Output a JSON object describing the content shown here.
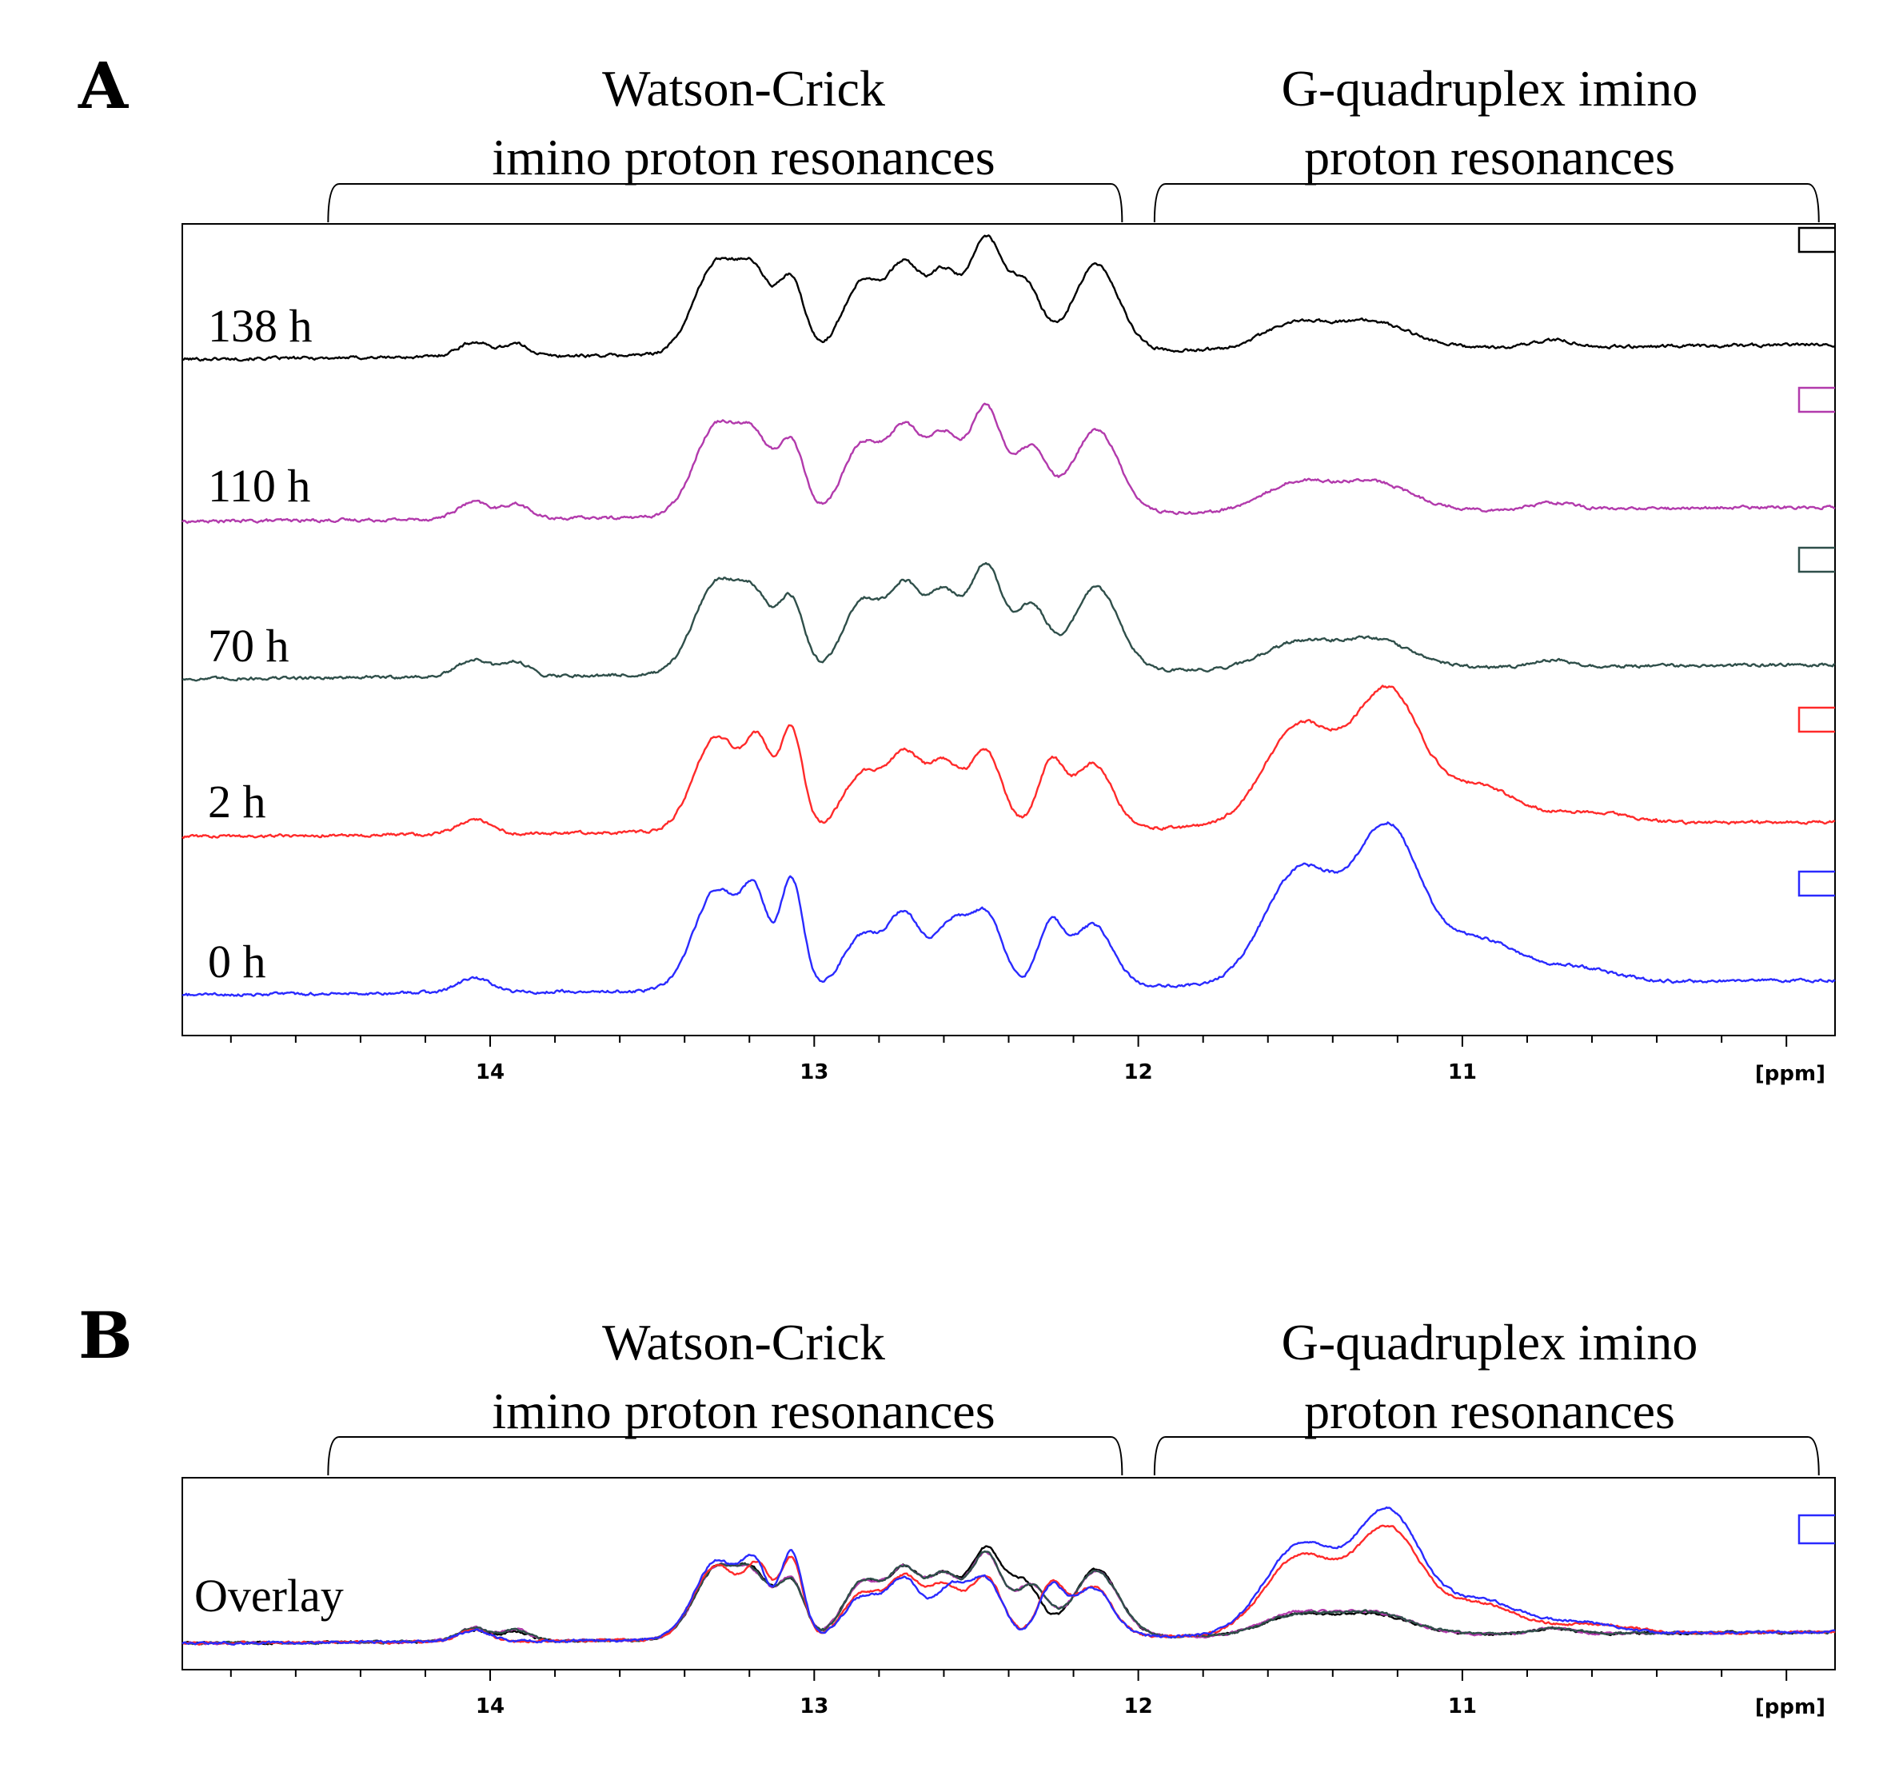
{
  "chart_data": [
    {
      "panel": "A",
      "type": "line",
      "subtype": "stacked NMR spectra",
      "xlabel": "[ppm]",
      "x_reversed": true,
      "xlim": [
        14.95,
        9.85
      ],
      "x_ticks": [
        14,
        13,
        12,
        11
      ],
      "x_tick_labels": [
        "14",
        "13",
        "12",
        "11"
      ],
      "minor_tick_step": 0.2,
      "regions": [
        {
          "label_line1": "Watson-Crick",
          "label_line2": "imino proton resonances",
          "x_from": 14.5,
          "x_to": 12.05
        },
        {
          "label_line1": "G-quadruplex imino",
          "label_line2": "proton resonances",
          "x_from": 11.95,
          "x_to": 9.9
        }
      ],
      "series": [
        {
          "name": "138 h",
          "color": "#000000",
          "offset": 4,
          "peaks": [
            [
              14.05,
              0.06,
              0.05
            ],
            [
              13.92,
              0.05,
              0.04
            ],
            [
              13.3,
              0.38,
              0.07
            ],
            [
              13.18,
              0.28,
              0.05
            ],
            [
              13.07,
              0.3,
              0.04
            ],
            [
              12.85,
              0.3,
              0.06
            ],
            [
              12.72,
              0.34,
              0.05
            ],
            [
              12.6,
              0.32,
              0.05
            ],
            [
              12.47,
              0.46,
              0.05
            ],
            [
              12.35,
              0.28,
              0.05
            ],
            [
              12.13,
              0.36,
              0.07
            ],
            [
              11.52,
              0.1,
              0.1
            ],
            [
              11.28,
              0.11,
              0.12
            ],
            [
              10.72,
              0.03,
              0.06
            ]
          ]
        },
        {
          "name": "110 h",
          "color": "#b23aac",
          "offset": 3,
          "peaks": [
            [
              14.05,
              0.07,
              0.05
            ],
            [
              13.92,
              0.06,
              0.04
            ],
            [
              13.3,
              0.38,
              0.07
            ],
            [
              13.18,
              0.27,
              0.05
            ],
            [
              13.07,
              0.3,
              0.04
            ],
            [
              12.85,
              0.3,
              0.06
            ],
            [
              12.72,
              0.34,
              0.05
            ],
            [
              12.6,
              0.32,
              0.05
            ],
            [
              12.47,
              0.44,
              0.05
            ],
            [
              12.33,
              0.27,
              0.05
            ],
            [
              12.13,
              0.35,
              0.07
            ],
            [
              11.52,
              0.11,
              0.1
            ],
            [
              11.28,
              0.12,
              0.12
            ],
            [
              10.72,
              0.03,
              0.06
            ]
          ]
        },
        {
          "name": "70 h",
          "color": "#2f4f4a",
          "offset": 2,
          "peaks": [
            [
              14.05,
              0.07,
              0.05
            ],
            [
              13.92,
              0.06,
              0.04
            ],
            [
              13.3,
              0.38,
              0.07
            ],
            [
              13.18,
              0.27,
              0.05
            ],
            [
              13.07,
              0.3,
              0.04
            ],
            [
              12.85,
              0.3,
              0.06
            ],
            [
              12.72,
              0.34,
              0.05
            ],
            [
              12.6,
              0.32,
              0.05
            ],
            [
              12.47,
              0.44,
              0.05
            ],
            [
              12.33,
              0.27,
              0.05
            ],
            [
              12.13,
              0.35,
              0.07
            ],
            [
              11.52,
              0.1,
              0.1
            ],
            [
              11.28,
              0.12,
              0.12
            ],
            [
              10.72,
              0.03,
              0.06
            ]
          ]
        },
        {
          "name": "2 h",
          "color": "#ff2a2a",
          "offset": 1,
          "peaks": [
            [
              14.05,
              0.06,
              0.05
            ],
            [
              13.3,
              0.4,
              0.07
            ],
            [
              13.17,
              0.33,
              0.04
            ],
            [
              13.07,
              0.42,
              0.035
            ],
            [
              12.85,
              0.24,
              0.06
            ],
            [
              12.72,
              0.3,
              0.05
            ],
            [
              12.6,
              0.27,
              0.05
            ],
            [
              12.47,
              0.32,
              0.05
            ],
            [
              12.27,
              0.27,
              0.04
            ],
            [
              12.14,
              0.27,
              0.06
            ],
            [
              11.5,
              0.42,
              0.11
            ],
            [
              11.23,
              0.55,
              0.1
            ],
            [
              10.95,
              0.16,
              0.12
            ],
            [
              10.6,
              0.05,
              0.12
            ]
          ]
        },
        {
          "name": "0 h",
          "color": "#2a2aff",
          "offset": 0,
          "peaks": [
            [
              14.05,
              0.06,
              0.05
            ],
            [
              13.3,
              0.42,
              0.07
            ],
            [
              13.18,
              0.34,
              0.04
            ],
            [
              13.07,
              0.46,
              0.035
            ],
            [
              12.85,
              0.22,
              0.06
            ],
            [
              12.72,
              0.3,
              0.05
            ],
            [
              12.58,
              0.26,
              0.05
            ],
            [
              12.47,
              0.3,
              0.05
            ],
            [
              12.27,
              0.26,
              0.04
            ],
            [
              12.14,
              0.26,
              0.06
            ],
            [
              11.5,
              0.48,
              0.11
            ],
            [
              11.23,
              0.64,
              0.1
            ],
            [
              10.95,
              0.18,
              0.12
            ],
            [
              10.65,
              0.06,
              0.12
            ]
          ]
        }
      ]
    },
    {
      "panel": "B",
      "type": "line",
      "subtype": "overlaid NMR spectra",
      "trace_label": "Overlay",
      "xlabel": "[ppm]",
      "x_reversed": true,
      "xlim": [
        14.95,
        9.85
      ],
      "x_ticks": [
        14,
        13,
        12,
        11
      ],
      "x_tick_labels": [
        "14",
        "13",
        "12",
        "11"
      ],
      "minor_tick_step": 0.2,
      "regions": [
        {
          "label_line1": "Watson-Crick",
          "label_line2": "imino proton resonances",
          "x_from": 14.5,
          "x_to": 12.05
        },
        {
          "label_line1": "G-quadruplex imino",
          "label_line2": "proton resonances",
          "x_from": 11.95,
          "x_to": 9.9
        }
      ],
      "series_refs": [
        "0 h",
        "2 h",
        "70 h",
        "110 h",
        "138 h"
      ]
    }
  ]
}
